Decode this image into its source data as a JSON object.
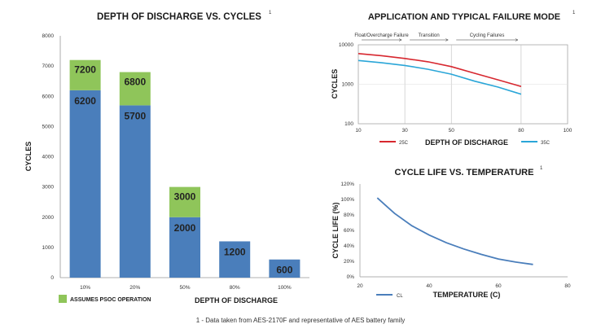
{
  "footnote": "1 - Data taken from AES-2170F and representative of AES battery family",
  "chart_data": [
    {
      "type": "bar",
      "title": "DEPTH OF DISCHARGE VS. CYCLES",
      "title_sup": "1",
      "xlabel": "DEPTH OF DISCHARGE",
      "ylabel": "CYCLES",
      "ylim": [
        0,
        8000
      ],
      "yticks": [
        0,
        1000,
        2000,
        3000,
        4000,
        5000,
        6000,
        7000,
        8000
      ],
      "categories": [
        "10%",
        "20%",
        "50%",
        "80%",
        "100%"
      ],
      "series": [
        {
          "name": "",
          "color": "#4a7ebb",
          "values": [
            6200,
            5700,
            2000,
            1200,
            600
          ]
        },
        {
          "name": "ASSUMES PSOC OPERATION",
          "color": "#8fc55a",
          "values": [
            7200,
            6800,
            3000,
            null,
            null
          ]
        }
      ]
    },
    {
      "type": "line",
      "title": "APPLICATION AND TYPICAL FAILURE MODE",
      "title_sup": "1",
      "xlabel": "DEPTH OF DISCHARGE",
      "ylabel": "CYCLES",
      "yscale": "log",
      "ylim": [
        100,
        10000
      ],
      "yticks": [
        100,
        1000,
        10000
      ],
      "xlim": [
        10,
        100
      ],
      "xticks": [
        10,
        30,
        50,
        80,
        100
      ],
      "regions": [
        "Float/Overcharge Failure",
        "Transition",
        "Cycling Failures"
      ],
      "series": [
        {
          "name": "25C",
          "color": "#d7272f",
          "x": [
            10,
            20,
            30,
            40,
            50,
            60,
            70,
            80
          ],
          "y": [
            6000,
            5300,
            4500,
            3700,
            2800,
            1900,
            1300,
            880
          ]
        },
        {
          "name": "35C",
          "color": "#2aa6d8",
          "x": [
            10,
            20,
            30,
            40,
            50,
            60,
            70,
            80
          ],
          "y": [
            4000,
            3500,
            3000,
            2400,
            1800,
            1200,
            850,
            560
          ]
        }
      ]
    },
    {
      "type": "line",
      "title": "CYCLE LIFE VS. TEMPERATURE",
      "title_sup": "1",
      "xlabel": "TEMPERATURE (C)",
      "ylabel": "CYCLE LIFE (%)",
      "xlim": [
        20,
        80
      ],
      "xticks": [
        20,
        40,
        60,
        80
      ],
      "ylim": [
        0,
        120
      ],
      "yticks": [
        "0%",
        "20%",
        "40%",
        "60%",
        "80%",
        "100%",
        "120%"
      ],
      "series": [
        {
          "name": "CL",
          "color": "#4a7ebb",
          "x": [
            25,
            30,
            35,
            40,
            45,
            50,
            55,
            60,
            65,
            70
          ],
          "y": [
            102,
            82,
            66,
            54,
            44,
            36,
            29,
            23,
            19,
            16
          ]
        }
      ]
    }
  ]
}
